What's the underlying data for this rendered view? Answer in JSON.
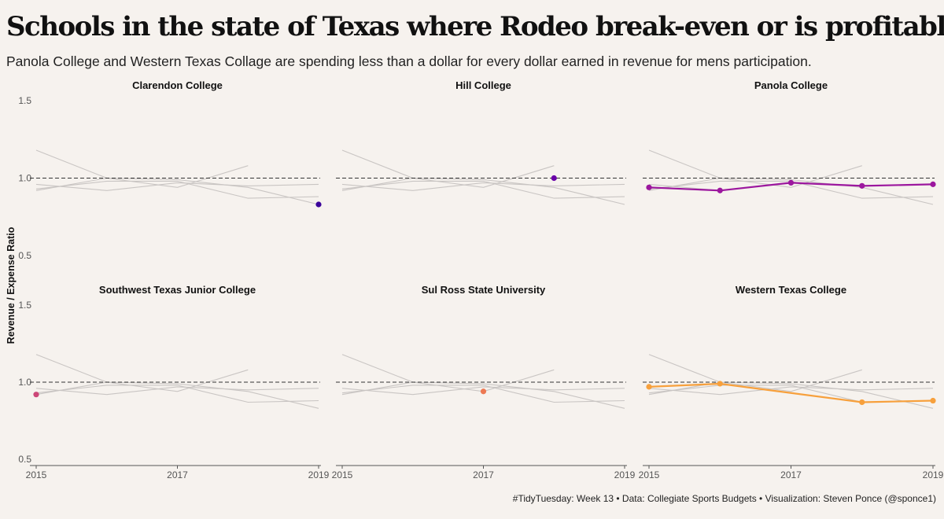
{
  "title": "Schools in the state of Texas where Rodeo break-even or is profitable",
  "subtitle": "Panola College and Western Texas Collage are spending less than a dollar for every dollar earned in revenue for mens participation.",
  "caption": "#TidyTuesday: Week 13 • Data: Collegiate Sports Budgets • Visualization: Steven Ponce (@sponce1)",
  "chart_data": {
    "type": "line",
    "ylabel": "Revenue / Expense Ratio",
    "xlabel": "",
    "ylim": [
      0.5,
      1.5
    ],
    "yticks": [
      0.5,
      1.0,
      1.5
    ],
    "ytick_labels": [
      "0.5",
      "1.0",
      "1.5"
    ],
    "xlim": [
      2015,
      2019
    ],
    "xticks": [
      2015,
      2017,
      2019
    ],
    "xtick_labels": [
      "2015",
      "2017",
      "2019"
    ],
    "reference_line": 1.0,
    "background_series": [
      {
        "x": [
          2015,
          2016,
          2017,
          2018,
          2019
        ],
        "y": [
          1.18,
          1.0,
          0.99,
          0.94,
          0.83
        ]
      },
      {
        "x": [
          2015,
          2016,
          2017,
          2018
        ],
        "y": [
          0.92,
          1.0,
          0.94,
          1.08
        ]
      },
      {
        "x": [
          2015,
          2016,
          2017,
          2018,
          2019
        ],
        "y": [
          0.96,
          0.92,
          0.97,
          0.95,
          0.96
        ]
      },
      {
        "x": [
          2015,
          2016,
          2017,
          2018,
          2019
        ],
        "y": [
          0.93,
          0.98,
          0.98,
          0.87,
          0.88
        ]
      }
    ],
    "facets": [
      {
        "name": "Clarendon College",
        "color": "#3b049a",
        "x": [
          2019
        ],
        "y": [
          0.83
        ]
      },
      {
        "name": "Hill College",
        "color": "#6a00a8",
        "x": [
          2018
        ],
        "y": [
          1.0
        ]
      },
      {
        "name": "Panola College",
        "color": "#9c179e",
        "x": [
          2015,
          2016,
          2017,
          2018,
          2019
        ],
        "y": [
          0.94,
          0.92,
          0.97,
          0.95,
          0.96
        ]
      },
      {
        "name": "Southwest Texas Junior College",
        "color": "#cc4778",
        "x": [
          2015
        ],
        "y": [
          0.92
        ]
      },
      {
        "name": "Sul Ross State University",
        "color": "#ed7953",
        "x": [
          2017
        ],
        "y": [
          0.94
        ]
      },
      {
        "name": "Western Texas College",
        "color": "#f7a03c",
        "x": [
          2015,
          2016,
          2018,
          2019
        ],
        "y": [
          0.97,
          0.99,
          0.87,
          0.88
        ]
      }
    ]
  }
}
